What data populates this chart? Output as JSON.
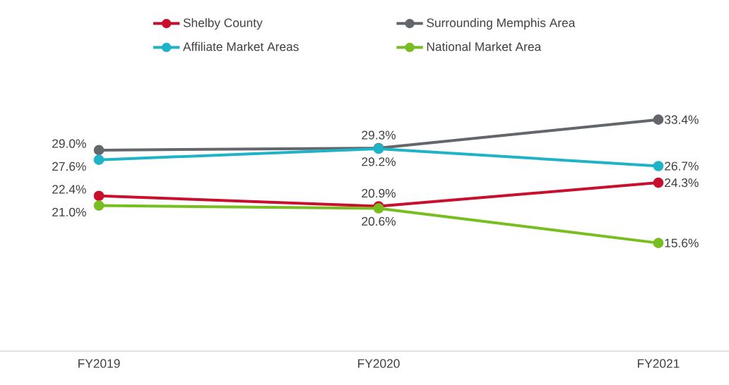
{
  "chart_data": {
    "type": "line",
    "categories": [
      "FY2019",
      "FY2020",
      "FY2021"
    ],
    "series": [
      {
        "name": "Shelby County",
        "color": "#c8102e",
        "values": [
          22.4,
          20.9,
          24.3
        ],
        "value_labels": [
          "22.4%",
          "20.9%",
          "24.3%"
        ]
      },
      {
        "name": "Surrounding Memphis Area",
        "color": "#63666a",
        "values": [
          29.0,
          29.3,
          33.4
        ],
        "value_labels": [
          "29.0%",
          "29.3%",
          "33.4%"
        ]
      },
      {
        "name": "Affiliate Market Areas",
        "color": "#1fb3c8",
        "values": [
          27.6,
          29.2,
          26.7
        ],
        "value_labels": [
          "27.6%",
          "29.2%",
          "26.7%"
        ]
      },
      {
        "name": "National Market Area",
        "color": "#78be20",
        "values": [
          21.0,
          20.6,
          15.6
        ],
        "value_labels": [
          "21.0%",
          "20.6%",
          "15.6%"
        ]
      }
    ],
    "legend": "top",
    "marker": "circle",
    "line_style": "solid"
  }
}
